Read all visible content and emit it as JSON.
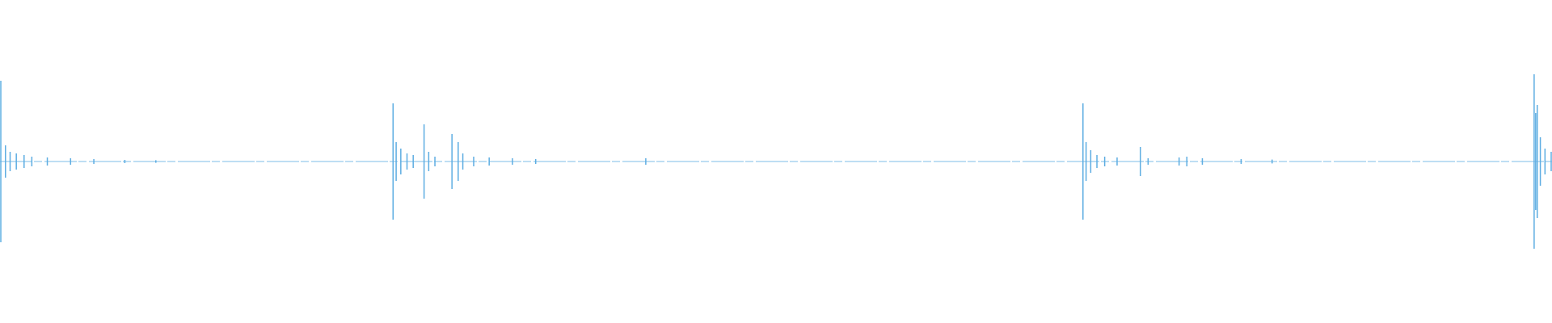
{
  "chart_data": {
    "type": "waveform",
    "color": "#5dade2",
    "xlim": [
      0,
      1
    ],
    "ylim": [
      -1,
      1
    ],
    "x": [
      0.0,
      0.003,
      0.006,
      0.01,
      0.015,
      0.02,
      0.03,
      0.045,
      0.06,
      0.08,
      0.1,
      0.253,
      0.255,
      0.258,
      0.262,
      0.266,
      0.273,
      0.276,
      0.28,
      0.291,
      0.295,
      0.298,
      0.305,
      0.315,
      0.33,
      0.345,
      0.416,
      0.698,
      0.7,
      0.703,
      0.707,
      0.712,
      0.72,
      0.735,
      0.74,
      0.76,
      0.765,
      0.775,
      0.8,
      0.82,
      0.989,
      0.99,
      0.991,
      0.993,
      0.996,
      1.0
    ],
    "values": [
      0.5,
      0.1,
      0.06,
      0.05,
      0.04,
      0.03,
      0.025,
      0.02,
      0.015,
      0.01,
      0.008,
      0.36,
      0.12,
      0.08,
      0.05,
      0.04,
      0.23,
      0.06,
      0.03,
      0.17,
      0.12,
      0.05,
      0.03,
      0.025,
      0.02,
      0.015,
      0.02,
      0.36,
      0.12,
      0.07,
      0.04,
      0.03,
      0.025,
      0.09,
      0.02,
      0.025,
      0.03,
      0.02,
      0.015,
      0.012,
      0.54,
      0.3,
      0.35,
      0.15,
      0.08,
      0.06
    ]
  }
}
